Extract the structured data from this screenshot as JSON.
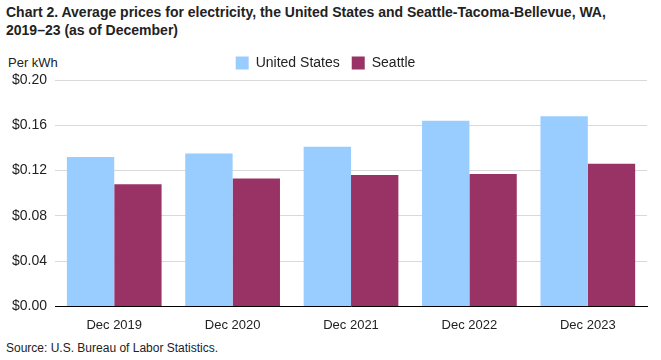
{
  "chart_data": {
    "type": "bar",
    "title": [
      "Chart 2. Average prices for electricity, the United States and Seattle-Tacoma-Bellevue, WA,",
      "2019–23 (as of December)"
    ],
    "y_label": "Per kWh",
    "source": "Source: U.S. Bureau of Labor Statistics.",
    "categories": [
      "Dec 2019",
      "Dec 2020",
      "Dec 2021",
      "Dec 2022",
      "Dec 2023"
    ],
    "series": [
      {
        "name": "United States",
        "color": "#99ccff",
        "values": [
          0.132,
          0.135,
          0.141,
          0.164,
          0.168
        ]
      },
      {
        "name": "Seattle",
        "color": "#993366",
        "values": [
          0.108,
          0.113,
          0.116,
          0.117,
          0.126
        ]
      }
    ],
    "ylim": [
      0,
      0.2
    ],
    "yticks": [
      {
        "value": 0,
        "label": "$0.00"
      },
      {
        "value": 0.04,
        "label": "$0.04"
      },
      {
        "value": 0.08,
        "label": "$0.08"
      },
      {
        "value": 0.12,
        "label": "$0.12"
      },
      {
        "value": 0.16,
        "label": "$0.16"
      },
      {
        "value": 0.2,
        "label": "$0.20"
      }
    ],
    "grid": true,
    "legend": "top"
  }
}
